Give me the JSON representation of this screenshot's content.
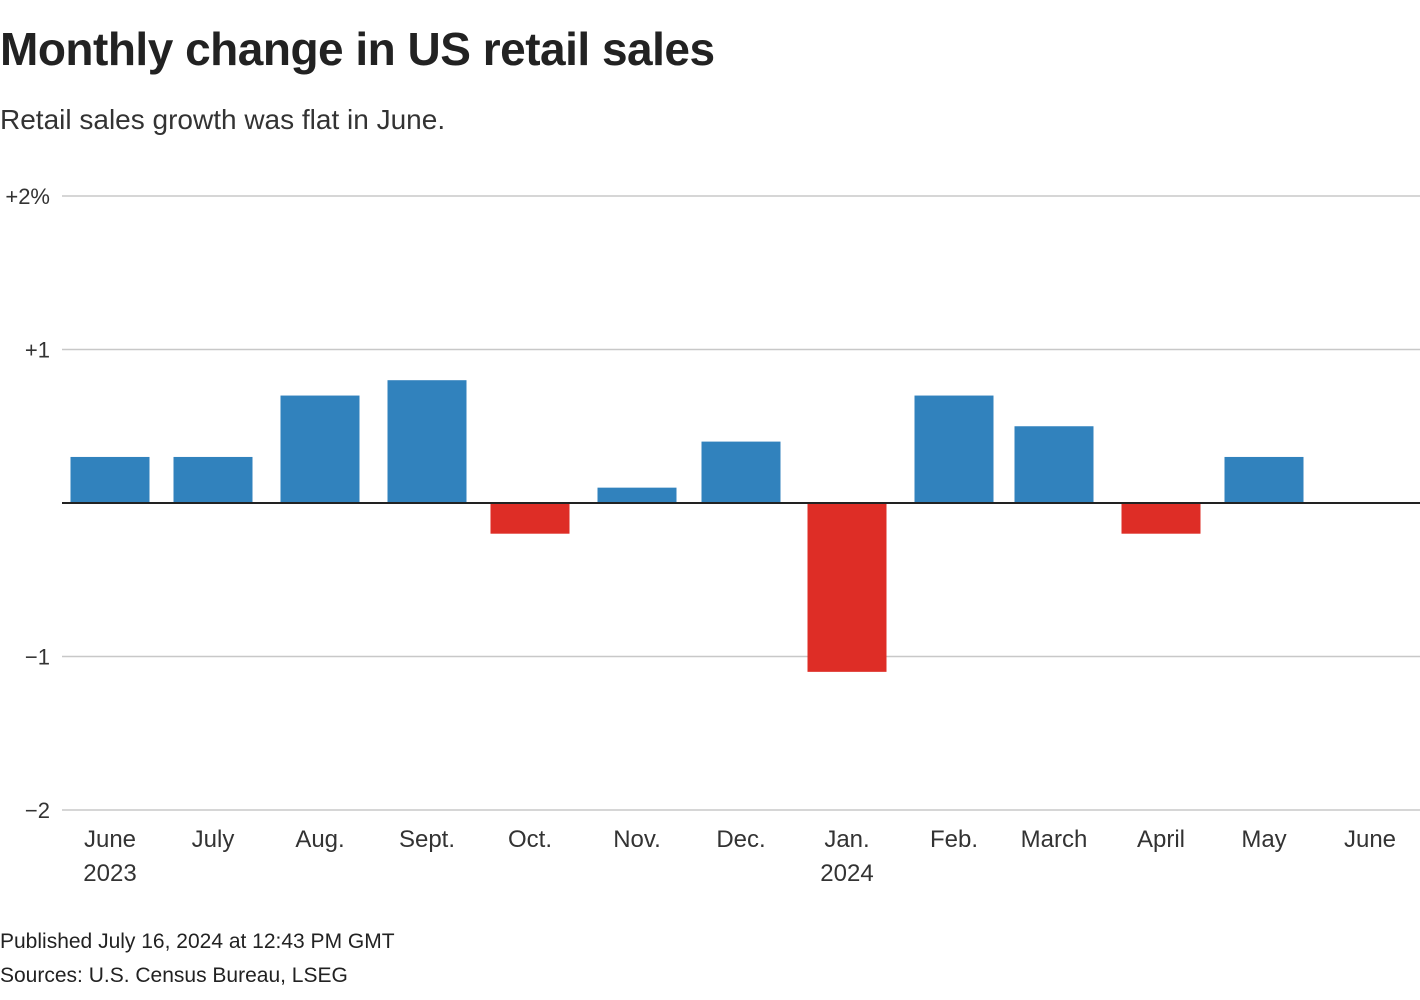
{
  "chart_data": {
    "type": "bar",
    "title": "Monthly change in US retail sales",
    "subtitle": "Retail sales growth was flat in June.",
    "categories": [
      "June",
      "July",
      "Aug.",
      "Sept.",
      "Oct.",
      "Nov.",
      "Dec.",
      "Jan.",
      "Feb.",
      "March",
      "April",
      "May",
      "June"
    ],
    "category_sublabels": [
      "2023",
      "",
      "",
      "",
      "",
      "",
      "",
      "2024",
      "",
      "",
      "",
      "",
      ""
    ],
    "values": [
      0.3,
      0.3,
      0.7,
      0.8,
      -0.2,
      0.1,
      0.4,
      -1.1,
      0.7,
      0.5,
      -0.2,
      0.3,
      0.0
    ],
    "ylim": [
      -2,
      2
    ],
    "yticks": [
      2,
      1,
      -1,
      -2
    ],
    "ytick_labels": [
      "+2%",
      "+1",
      "−1",
      "−2"
    ],
    "xlabel": "",
    "ylabel": "",
    "grid": true,
    "colors": {
      "positive": "#3182bd",
      "negative": "#de2d26",
      "grid": "#c8c8c8",
      "zero": "#222222"
    }
  },
  "footer": {
    "published": "Published July 16, 2024 at 12:43 PM GMT",
    "sources": "Sources: U.S. Census Bureau, LSEG"
  }
}
